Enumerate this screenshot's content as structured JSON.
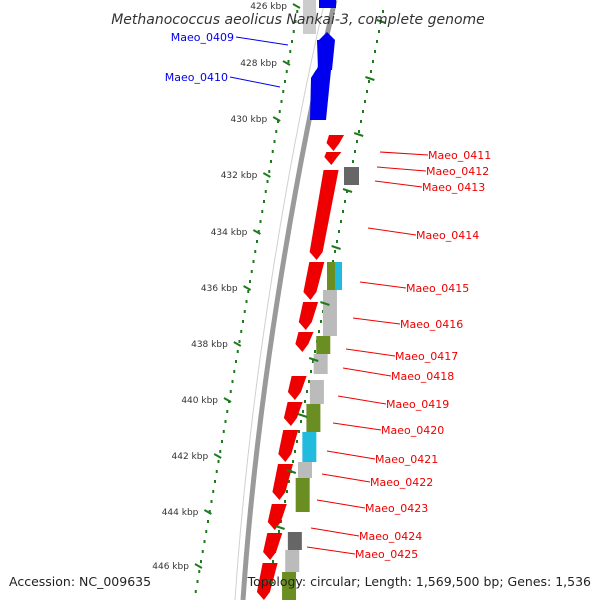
{
  "title": "Methanococcus aeolicus Nankai-3, complete genome",
  "accession": "Accession: NC_009635",
  "topology": "Topology: circular; Length: 1,569,500 bp; Genes: 1,536",
  "colors": {
    "forward": "#0000ee",
    "reverse": "#ee0000",
    "backbone": "#999999",
    "ticks": "#1f7a1f",
    "olive": "#6b8e23",
    "cyan": "#22bbdd",
    "gray": "#bbbbbb",
    "dark_gray": "#666666"
  },
  "kbp_ticks": [
    "426 kbp",
    "428 kbp",
    "430 kbp",
    "432 kbp",
    "434 kbp",
    "436 kbp",
    "438 kbp",
    "440 kbp",
    "442 kbp",
    "444 kbp",
    "446 kbp"
  ],
  "genes": [
    {
      "label": "Maeo_0409",
      "strand": "forward"
    },
    {
      "label": "Maeo_0410",
      "strand": "forward"
    },
    {
      "label": "Maeo_0411",
      "strand": "reverse"
    },
    {
      "label": "Maeo_0412",
      "strand": "reverse"
    },
    {
      "label": "Maeo_0413",
      "strand": "reverse"
    },
    {
      "label": "Maeo_0414",
      "strand": "reverse"
    },
    {
      "label": "Maeo_0415",
      "strand": "reverse"
    },
    {
      "label": "Maeo_0416",
      "strand": "reverse"
    },
    {
      "label": "Maeo_0417",
      "strand": "reverse"
    },
    {
      "label": "Maeo_0418",
      "strand": "reverse"
    },
    {
      "label": "Maeo_0419",
      "strand": "reverse"
    },
    {
      "label": "Maeo_0420",
      "strand": "reverse"
    },
    {
      "label": "Maeo_0421",
      "strand": "reverse"
    },
    {
      "label": "Maeo_0422",
      "strand": "reverse"
    },
    {
      "label": "Maeo_0423",
      "strand": "reverse"
    },
    {
      "label": "Maeo_0424",
      "strand": "reverse"
    },
    {
      "label": "Maeo_0425",
      "strand": "reverse"
    }
  ]
}
